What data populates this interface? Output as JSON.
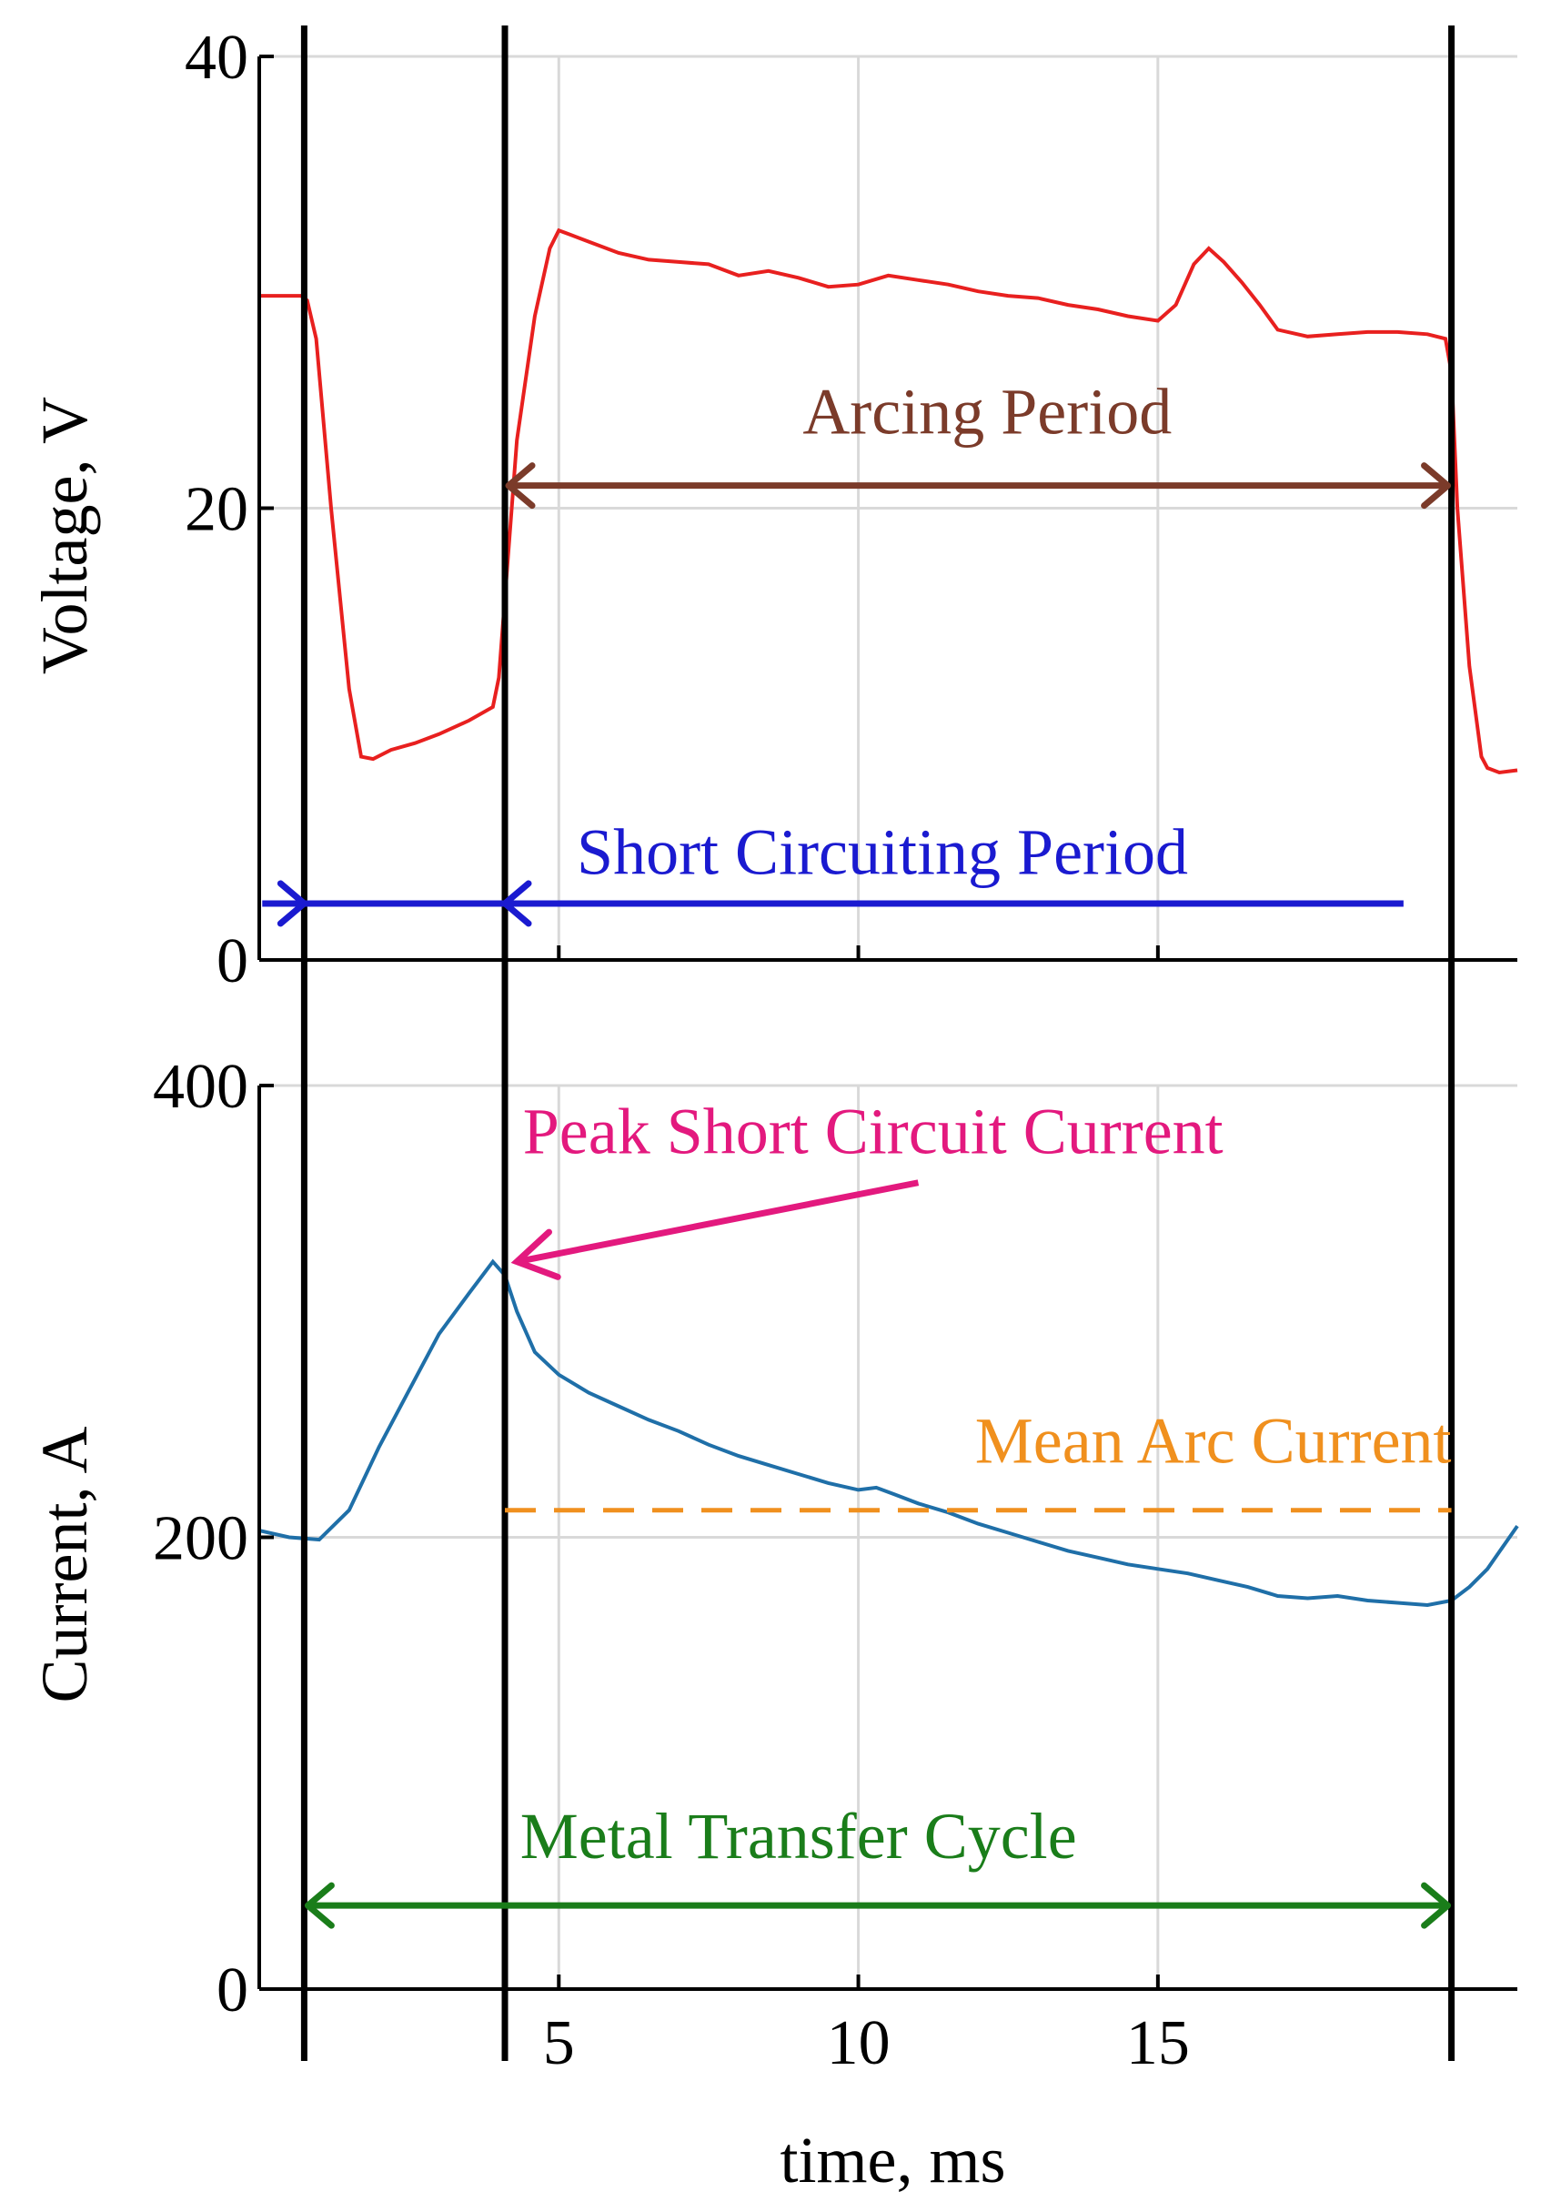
{
  "chart_data": [
    {
      "type": "line",
      "panel": "top",
      "ylabel": "Voltage, V",
      "xlabel": "",
      "xlim": [
        0,
        21
      ],
      "ylim": [
        0,
        40
      ],
      "yticks": [
        0,
        20,
        40
      ],
      "xticks": [
        5,
        10,
        15
      ],
      "grid": true,
      "series": [
        {
          "color": "#e8201f",
          "x": [
            0,
            0.7,
            0.8,
            0.95,
            1.2,
            1.5,
            1.7,
            1.9,
            2.2,
            2.6,
            3.0,
            3.5,
            3.9,
            4.0,
            4.1,
            4.3,
            4.6,
            4.85,
            5.0,
            5.2,
            5.5,
            6.0,
            6.5,
            7.0,
            7.5,
            8.0,
            8.5,
            9.0,
            9.5,
            10.0,
            10.5,
            11.0,
            11.5,
            12.0,
            12.5,
            13.0,
            13.5,
            14.0,
            14.5,
            15.0,
            15.3,
            15.6,
            15.85,
            16.1,
            16.4,
            16.7,
            17.0,
            17.5,
            18.0,
            18.5,
            19.0,
            19.5,
            19.8,
            19.9,
            20.0,
            20.2,
            20.4,
            20.5,
            20.7,
            21.0
          ],
          "y": [
            29.4,
            29.4,
            29.2,
            27.5,
            20.0,
            12.0,
            9.0,
            8.9,
            9.3,
            9.6,
            10.0,
            10.6,
            11.2,
            12.5,
            16.0,
            23.0,
            28.5,
            31.5,
            32.3,
            32.1,
            31.8,
            31.3,
            31.0,
            30.9,
            30.8,
            30.3,
            30.5,
            30.2,
            29.8,
            29.9,
            30.3,
            30.1,
            29.9,
            29.6,
            29.4,
            29.3,
            29.0,
            28.8,
            28.5,
            28.3,
            29.0,
            30.8,
            31.5,
            30.9,
            30.0,
            29.0,
            27.9,
            27.6,
            27.7,
            27.8,
            27.8,
            27.7,
            27.5,
            26.0,
            20.0,
            13.0,
            9.0,
            8.5,
            8.3,
            8.4
          ]
        }
      ],
      "annotations": [
        {
          "text": "Arcing Period",
          "color": "#7b3b2a"
        },
        {
          "text": "Short Circuiting Period",
          "color": "#1a1ad0"
        }
      ]
    },
    {
      "type": "line",
      "panel": "bottom",
      "ylabel": "Current, A",
      "xlabel": "time, ms",
      "xlim": [
        0,
        21
      ],
      "ylim": [
        0,
        400
      ],
      "yticks": [
        0,
        200,
        400
      ],
      "xticks": [
        5,
        10,
        15
      ],
      "grid": true,
      "series": [
        {
          "color": "#1f6fa8",
          "x": [
            0,
            0.5,
            1.0,
            1.5,
            2.0,
            2.5,
            3.0,
            3.5,
            3.9,
            4.1,
            4.3,
            4.6,
            5.0,
            5.5,
            6.0,
            6.5,
            7.0,
            7.5,
            8.0,
            8.5,
            9.0,
            9.5,
            10.0,
            10.3,
            10.6,
            11.0,
            11.5,
            12.0,
            12.5,
            13.0,
            13.5,
            14.0,
            14.5,
            15.0,
            15.5,
            16.0,
            16.5,
            17.0,
            17.5,
            18.0,
            18.5,
            19.0,
            19.5,
            19.9,
            20.2,
            20.5,
            21.0
          ],
          "y": [
            203,
            200,
            199,
            212,
            240,
            265,
            290,
            308,
            322,
            316,
            300,
            282,
            272,
            264,
            258,
            252,
            247,
            241,
            236,
            232,
            228,
            224,
            221,
            222,
            219,
            215,
            211,
            206,
            202,
            198,
            194,
            191,
            188,
            186,
            184,
            181,
            178,
            174,
            173,
            174,
            172,
            171,
            170,
            172,
            178,
            186,
            205
          ]
        }
      ],
      "reference_lines": [
        {
          "name": "Mean Arc Current",
          "y": 212,
          "x_range": [
            4.1,
            19.9
          ],
          "style": "dashed",
          "color": "#f0901e"
        }
      ],
      "annotations": [
        {
          "text": "Peak Short Circuit Current",
          "color": "#e3197e",
          "point": [
            4.1,
            322
          ]
        },
        {
          "text": "Mean Arc Current",
          "color": "#f0901e"
        },
        {
          "text": "Metal Transfer Cycle",
          "color": "#1a7d1a"
        }
      ]
    }
  ],
  "markers": {
    "vertical_lines_ms": [
      0.75,
      4.1,
      19.9
    ]
  },
  "ticks": {
    "top_y": [
      "0",
      "20",
      "40"
    ],
    "bottom_y": [
      "0",
      "200",
      "400"
    ],
    "x": [
      "5",
      "10",
      "15"
    ]
  },
  "labels": {
    "top_ylabel": "Voltage, V",
    "bottom_ylabel": "Current, A",
    "xlabel": "time, ms",
    "arcing_period": "Arcing Period",
    "short_circuiting_period": "Short Circuiting Period",
    "peak_short_circuit_current": "Peak Short Circuit Current",
    "mean_arc_current": "Mean Arc Current",
    "metal_transfer_cycle": "Metal Transfer Cycle"
  },
  "colors": {
    "voltage": "#e8201f",
    "current": "#1f6fa8",
    "arcing": "#7b3b2a",
    "short_circuit": "#1a1ad0",
    "peak": "#e3197e",
    "mean": "#f0901e",
    "cycle": "#1a7d1a",
    "grid": "#d9d9d9"
  }
}
